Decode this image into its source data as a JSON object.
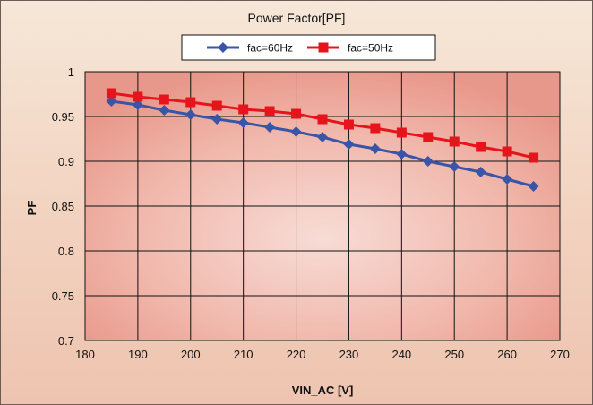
{
  "chart_data": {
    "type": "line",
    "title": "Power Factor[PF]",
    "xlabel": "VIN_AC [V]",
    "ylabel": "PF",
    "xlim": [
      180,
      270
    ],
    "ylim": [
      0.7,
      1
    ],
    "xticks": [
      180,
      190,
      200,
      210,
      220,
      230,
      240,
      250,
      260,
      270
    ],
    "yticks": [
      0.7,
      0.75,
      0.8,
      0.85,
      0.9,
      0.95,
      1
    ],
    "ytick_labels": [
      "0.7",
      "0.75",
      "0.8",
      "0.85",
      "0.9",
      "0.95",
      "1"
    ],
    "grid": true,
    "legend_position": "top-center",
    "x": [
      185,
      190,
      195,
      200,
      205,
      210,
      215,
      220,
      225,
      230,
      235,
      240,
      245,
      250,
      255,
      260,
      265
    ],
    "series": [
      {
        "name": "fac=60Hz",
        "color": "#3a55a8",
        "marker": "diamond",
        "values": [
          0.967,
          0.963,
          0.957,
          0.952,
          0.947,
          0.943,
          0.938,
          0.933,
          0.927,
          0.919,
          0.914,
          0.908,
          0.9,
          0.894,
          0.888,
          0.88,
          0.872
        ]
      },
      {
        "name": "fac=50Hz",
        "color": "#e8141c",
        "marker": "square",
        "values": [
          0.976,
          0.972,
          0.969,
          0.966,
          0.962,
          0.958,
          0.956,
          0.953,
          0.947,
          0.941,
          0.937,
          0.932,
          0.927,
          0.922,
          0.916,
          0.911,
          0.904
        ]
      }
    ]
  }
}
